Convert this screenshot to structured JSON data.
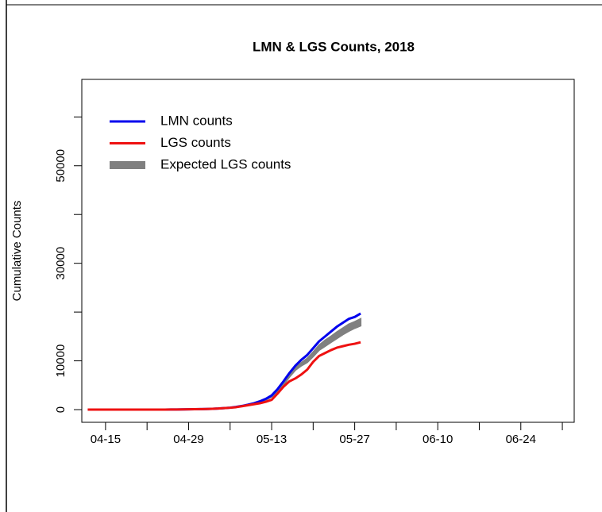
{
  "chart_data": {
    "type": "line",
    "title": "LMN & LGS Counts, 2018",
    "ylabel": "Cumulative Counts",
    "x": [
      "04-12",
      "04-13",
      "04-14",
      "04-15",
      "04-16",
      "04-17",
      "04-18",
      "04-19",
      "04-20",
      "04-21",
      "04-22",
      "04-23",
      "04-24",
      "04-25",
      "04-26",
      "04-27",
      "04-28",
      "04-29",
      "04-30",
      "05-01",
      "05-02",
      "05-03",
      "05-04",
      "05-05",
      "05-06",
      "05-07",
      "05-08",
      "05-09",
      "05-10",
      "05-11",
      "05-12",
      "05-13",
      "05-14",
      "05-15",
      "05-16",
      "05-17",
      "05-18",
      "05-19",
      "05-20",
      "05-21",
      "05-22",
      "05-23",
      "05-24",
      "05-25",
      "05-26",
      "05-27",
      "05-28"
    ],
    "series": [
      {
        "name": "LMN counts",
        "color": "#0000ee",
        "values": [
          0,
          0,
          0,
          0,
          0,
          0,
          0,
          0,
          0,
          0,
          0,
          0,
          0,
          10,
          20,
          30,
          40,
          60,
          80,
          100,
          130,
          170,
          220,
          300,
          400,
          550,
          750,
          1000,
          1300,
          1700,
          2200,
          2900,
          4200,
          5800,
          7500,
          9000,
          10200,
          11200,
          12600,
          14000,
          15000,
          16000,
          17000,
          17800,
          18600,
          19000,
          19700
        ]
      },
      {
        "name": "LGS counts",
        "color": "#ee1111",
        "values": [
          0,
          0,
          0,
          0,
          0,
          0,
          0,
          0,
          0,
          0,
          0,
          0,
          0,
          10,
          20,
          30,
          40,
          60,
          80,
          100,
          130,
          170,
          220,
          300,
          380,
          500,
          700,
          900,
          1100,
          1300,
          1600,
          2000,
          3300,
          4700,
          5800,
          6400,
          7200,
          8200,
          9800,
          11000,
          11600,
          12200,
          12700,
          13000,
          13300,
          13500,
          13800
        ]
      }
    ],
    "band": {
      "name": "Expected LGS counts",
      "color": "#808080",
      "upper": [
        0,
        0,
        0,
        0,
        0,
        0,
        0,
        0,
        0,
        0,
        0,
        0,
        0,
        10,
        20,
        30,
        40,
        60,
        80,
        100,
        130,
        170,
        220,
        300,
        400,
        550,
        750,
        1000,
        1300,
        1700,
        2200,
        2800,
        4000,
        5500,
        7200,
        8600,
        9600,
        10500,
        11800,
        13200,
        14200,
        15000,
        15900,
        16700,
        17500,
        18000,
        18600
      ],
      "lower": [
        0,
        0,
        0,
        0,
        0,
        0,
        0,
        0,
        0,
        0,
        0,
        0,
        0,
        10,
        20,
        30,
        40,
        50,
        70,
        90,
        120,
        150,
        200,
        270,
        360,
        500,
        680,
        900,
        1170,
        1530,
        1980,
        2600,
        3700,
        5000,
        6700,
        8100,
        9000,
        9700,
        10900,
        12200,
        13000,
        13800,
        14600,
        15400,
        16100,
        16700,
        17200
      ]
    },
    "xlim": [
      "04-11",
      "07-03"
    ],
    "xticks": [
      "04-15",
      "04-29",
      "05-13",
      "05-27",
      "06-10",
      "06-24"
    ],
    "xticks_unlabeled": [
      "04-22",
      "05-06",
      "05-20",
      "06-03",
      "06-17",
      "07-01"
    ],
    "ylim": [
      -2600,
      67700
    ],
    "yticks": [
      0,
      10000,
      30000,
      50000
    ],
    "yticks_unlabeled": [
      20000,
      40000,
      60000
    ],
    "legend": "topleft"
  }
}
